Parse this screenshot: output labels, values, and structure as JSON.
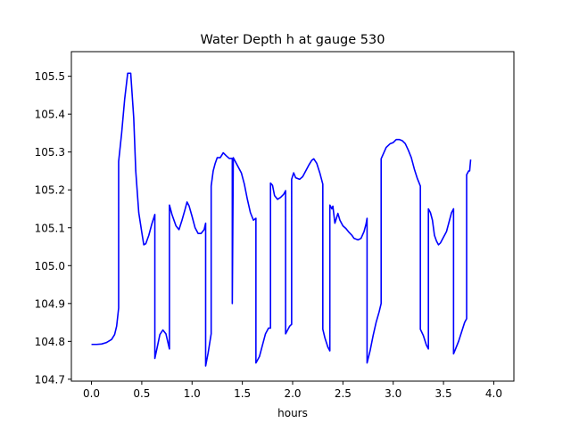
{
  "colors": {
    "line": "#0000ff",
    "axes": "#000000",
    "background": "#ffffff"
  },
  "chart_data": {
    "type": "line",
    "title": "Water Depth h at gauge 530",
    "xlabel": "hours",
    "ylabel": "",
    "xlim": [
      -0.2,
      4.2
    ],
    "ylim": [
      104.695,
      105.565
    ],
    "xticks": [
      0.0,
      0.5,
      1.0,
      1.5,
      2.0,
      2.5,
      3.0,
      3.5,
      4.0
    ],
    "xtick_labels": [
      "0.0",
      "0.5",
      "1.0",
      "1.5",
      "2.0",
      "2.5",
      "3.0",
      "3.5",
      "4.0"
    ],
    "yticks": [
      104.7,
      104.8,
      104.9,
      105.0,
      105.1,
      105.2,
      105.3,
      105.4,
      105.5
    ],
    "ytick_labels": [
      "104.7",
      "104.8",
      "104.9",
      "105.0",
      "105.1",
      "105.2",
      "105.3",
      "105.4",
      "105.5"
    ],
    "grid": false,
    "series": [
      {
        "points": [
          [
            0.0,
            104.792
          ],
          [
            0.05,
            104.792
          ],
          [
            0.1,
            104.793
          ],
          [
            0.15,
            104.797
          ],
          [
            0.2,
            104.805
          ],
          [
            0.23,
            104.818
          ],
          [
            0.25,
            104.84
          ],
          [
            0.27,
            104.888
          ],
          [
            0.27,
            105.275
          ],
          [
            0.3,
            105.35
          ],
          [
            0.33,
            105.44
          ],
          [
            0.36,
            105.508
          ],
          [
            0.39,
            105.508
          ],
          [
            0.42,
            105.39
          ],
          [
            0.44,
            105.25
          ],
          [
            0.47,
            105.14
          ],
          [
            0.5,
            105.088
          ],
          [
            0.52,
            105.055
          ],
          [
            0.54,
            105.058
          ],
          [
            0.57,
            105.08
          ],
          [
            0.6,
            105.11
          ],
          [
            0.63,
            105.135
          ],
          [
            0.63,
            104.755
          ],
          [
            0.65,
            104.78
          ],
          [
            0.68,
            104.818
          ],
          [
            0.71,
            104.83
          ],
          [
            0.74,
            104.82
          ],
          [
            0.775,
            104.78
          ],
          [
            0.775,
            105.16
          ],
          [
            0.8,
            105.135
          ],
          [
            0.84,
            105.105
          ],
          [
            0.87,
            105.095
          ],
          [
            0.9,
            105.12
          ],
          [
            0.93,
            105.148
          ],
          [
            0.95,
            105.168
          ],
          [
            0.97,
            105.158
          ],
          [
            1.0,
            105.13
          ],
          [
            1.03,
            105.1
          ],
          [
            1.06,
            105.085
          ],
          [
            1.09,
            105.085
          ],
          [
            1.12,
            105.095
          ],
          [
            1.135,
            105.112
          ],
          [
            1.135,
            104.735
          ],
          [
            1.16,
            104.77
          ],
          [
            1.19,
            104.82
          ],
          [
            1.19,
            105.21
          ],
          [
            1.21,
            105.25
          ],
          [
            1.23,
            105.27
          ],
          [
            1.25,
            105.285
          ],
          [
            1.28,
            105.285
          ],
          [
            1.31,
            105.298
          ],
          [
            1.34,
            105.29
          ],
          [
            1.37,
            105.283
          ],
          [
            1.4,
            105.283
          ],
          [
            1.4,
            104.9
          ],
          [
            1.41,
            105.285
          ],
          [
            1.43,
            105.275
          ],
          [
            1.46,
            105.26
          ],
          [
            1.49,
            105.245
          ],
          [
            1.52,
            105.215
          ],
          [
            1.55,
            105.175
          ],
          [
            1.58,
            105.14
          ],
          [
            1.61,
            105.12
          ],
          [
            1.635,
            105.125
          ],
          [
            1.635,
            104.743
          ],
          [
            1.67,
            104.76
          ],
          [
            1.7,
            104.79
          ],
          [
            1.73,
            104.82
          ],
          [
            1.76,
            104.835
          ],
          [
            1.78,
            104.835
          ],
          [
            1.78,
            105.218
          ],
          [
            1.8,
            105.212
          ],
          [
            1.82,
            105.185
          ],
          [
            1.85,
            105.175
          ],
          [
            1.88,
            105.18
          ],
          [
            1.91,
            105.188
          ],
          [
            1.93,
            105.198
          ],
          [
            1.93,
            104.82
          ],
          [
            1.95,
            104.83
          ],
          [
            1.97,
            104.84
          ],
          [
            1.99,
            104.845
          ],
          [
            1.99,
            105.228
          ],
          [
            2.01,
            105.245
          ],
          [
            2.03,
            105.232
          ],
          [
            2.07,
            105.228
          ],
          [
            2.1,
            105.235
          ],
          [
            2.13,
            105.25
          ],
          [
            2.16,
            105.265
          ],
          [
            2.19,
            105.278
          ],
          [
            2.21,
            105.282
          ],
          [
            2.24,
            105.27
          ],
          [
            2.27,
            105.245
          ],
          [
            2.3,
            105.215
          ],
          [
            2.3,
            104.832
          ],
          [
            2.32,
            104.81
          ],
          [
            2.35,
            104.785
          ],
          [
            2.37,
            104.775
          ],
          [
            2.37,
            105.16
          ],
          [
            2.39,
            105.15
          ],
          [
            2.4,
            105.157
          ],
          [
            2.42,
            105.112
          ],
          [
            2.45,
            105.138
          ],
          [
            2.47,
            105.12
          ],
          [
            2.5,
            105.105
          ],
          [
            2.53,
            105.098
          ],
          [
            2.56,
            105.088
          ],
          [
            2.59,
            105.08
          ],
          [
            2.61,
            105.072
          ],
          [
            2.63,
            105.07
          ],
          [
            2.65,
            105.068
          ],
          [
            2.68,
            105.072
          ],
          [
            2.71,
            105.09
          ],
          [
            2.73,
            105.11
          ],
          [
            2.74,
            105.125
          ],
          [
            2.74,
            104.743
          ],
          [
            2.77,
            104.775
          ],
          [
            2.8,
            104.815
          ],
          [
            2.83,
            104.85
          ],
          [
            2.86,
            104.878
          ],
          [
            2.88,
            104.9
          ],
          [
            2.88,
            105.282
          ],
          [
            2.91,
            105.3
          ],
          [
            2.93,
            105.312
          ],
          [
            2.97,
            105.322
          ],
          [
            3.0,
            105.325
          ],
          [
            3.03,
            105.333
          ],
          [
            3.06,
            105.333
          ],
          [
            3.09,
            105.33
          ],
          [
            3.12,
            105.322
          ],
          [
            3.15,
            105.305
          ],
          [
            3.18,
            105.285
          ],
          [
            3.21,
            105.255
          ],
          [
            3.24,
            105.23
          ],
          [
            3.27,
            105.21
          ],
          [
            3.27,
            104.832
          ],
          [
            3.3,
            104.815
          ],
          [
            3.33,
            104.79
          ],
          [
            3.35,
            104.78
          ],
          [
            3.35,
            105.15
          ],
          [
            3.37,
            105.14
          ],
          [
            3.39,
            105.12
          ],
          [
            3.41,
            105.08
          ],
          [
            3.43,
            105.065
          ],
          [
            3.45,
            105.055
          ],
          [
            3.47,
            105.06
          ],
          [
            3.5,
            105.075
          ],
          [
            3.53,
            105.09
          ],
          [
            3.56,
            105.12
          ],
          [
            3.58,
            105.14
          ],
          [
            3.6,
            105.15
          ],
          [
            3.6,
            104.767
          ],
          [
            3.62,
            104.78
          ],
          [
            3.65,
            104.8
          ],
          [
            3.68,
            104.825
          ],
          [
            3.71,
            104.85
          ],
          [
            3.73,
            104.86
          ],
          [
            3.73,
            105.24
          ],
          [
            3.75,
            105.25
          ],
          [
            3.76,
            105.25
          ],
          [
            3.77,
            105.28
          ]
        ]
      }
    ]
  }
}
